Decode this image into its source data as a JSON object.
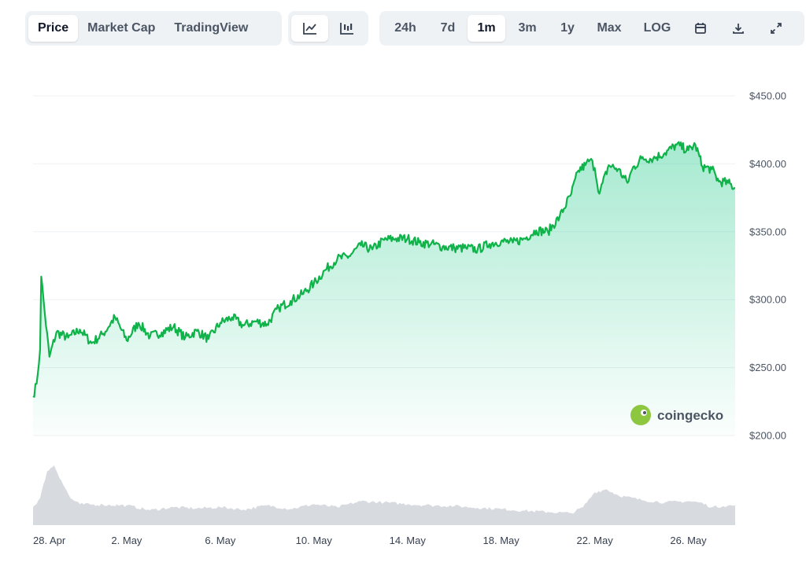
{
  "toolbar": {
    "metric_tabs": [
      {
        "label": "Price",
        "active": true
      },
      {
        "label": "Market Cap",
        "active": false
      },
      {
        "label": "TradingView",
        "active": false
      }
    ],
    "chart_types": [
      {
        "icon": "line-chart-icon",
        "active": true
      },
      {
        "icon": "candlestick-chart-icon",
        "active": false
      }
    ],
    "ranges": [
      {
        "label": "24h",
        "active": false
      },
      {
        "label": "7d",
        "active": false
      },
      {
        "label": "1m",
        "active": true
      },
      {
        "label": "3m",
        "active": false
      },
      {
        "label": "1y",
        "active": false
      },
      {
        "label": "Max",
        "active": false
      },
      {
        "label": "LOG",
        "active": false
      }
    ],
    "tools": [
      "calendar-icon",
      "download-icon",
      "fullscreen-icon"
    ]
  },
  "watermark": {
    "text": "coingecko",
    "icon": "coingecko-logo-icon"
  },
  "colors": {
    "line": "#16c784",
    "line_dark": "#10b34a",
    "volume": "#d7dbe0",
    "grid": "#eef0f3",
    "text": "#4b5563"
  },
  "chart_data": {
    "type": "area",
    "y_tick_labels": [
      "$450.00",
      "$400.00",
      "$350.00",
      "$300.00",
      "$250.00",
      "$200.00"
    ],
    "y_ticks": [
      450,
      400,
      350,
      300,
      250,
      200
    ],
    "ylim": [
      200,
      450
    ],
    "x_tick_labels": [
      "28. Apr",
      "2. May",
      "6. May",
      "10. May",
      "14. May",
      "18. May",
      "22. May",
      "26. May"
    ],
    "x_tick_days": [
      0,
      4,
      8,
      12,
      16,
      20,
      24,
      28
    ],
    "series": [
      {
        "x": [
          0,
          0.15,
          0.3,
          0.35,
          0.5,
          0.7,
          1,
          1.5,
          2,
          2.5,
          3,
          3.5,
          4,
          4.5,
          5,
          5.5,
          6,
          6.5,
          7,
          7.5,
          8,
          8.5,
          9,
          9.5,
          10,
          10.5,
          11,
          11.5,
          12,
          12.5,
          13,
          13.5,
          14,
          14.5,
          15,
          15.5,
          16,
          16.5,
          17,
          17.5,
          18,
          18.5,
          19,
          19.5,
          20,
          20.5,
          21,
          21.5,
          22,
          22.5,
          23,
          23.3,
          23.6,
          23.8,
          24,
          24.2,
          24.6,
          25,
          25.4,
          25.6,
          26,
          26.5,
          27,
          27.5,
          28,
          28.3,
          28.6,
          29,
          29.3,
          29.7,
          30
        ],
        "y": [
          229,
          238,
          263,
          317,
          290,
          258,
          276,
          272,
          278,
          268,
          275,
          287,
          270,
          283,
          273,
          276,
          280,
          272,
          277,
          271,
          283,
          287,
          281,
          284,
          282,
          294,
          299,
          304,
          312,
          322,
          330,
          332,
          340,
          337,
          344,
          345,
          345,
          342,
          341,
          339,
          338,
          338,
          337,
          341,
          343,
          342,
          345,
          351,
          350,
          361,
          378,
          395,
          399,
          403,
          397,
          378,
          399,
          396,
          386,
          396,
          404,
          404,
          408,
          414,
          410,
          414,
          398,
          396,
          387,
          386,
          382
        ]
      }
    ],
    "volume_relative": {
      "x": [
        0,
        0.3,
        0.6,
        0.9,
        1.2,
        1.6,
        2,
        3,
        4,
        5,
        6,
        7,
        8,
        9,
        10,
        11,
        12,
        13,
        14,
        15,
        16,
        17,
        18,
        19,
        20,
        21,
        22,
        23,
        23.5,
        24,
        24.5,
        25,
        26,
        27,
        28,
        28.5,
        29,
        29.5,
        30
      ],
      "y": [
        0.3,
        0.45,
        0.9,
        1.0,
        0.75,
        0.45,
        0.35,
        0.34,
        0.33,
        0.25,
        0.3,
        0.28,
        0.3,
        0.26,
        0.33,
        0.27,
        0.35,
        0.3,
        0.4,
        0.38,
        0.35,
        0.33,
        0.32,
        0.29,
        0.27,
        0.24,
        0.22,
        0.2,
        0.3,
        0.55,
        0.6,
        0.5,
        0.42,
        0.38,
        0.4,
        0.38,
        0.3,
        0.32,
        0.33
      ]
    }
  }
}
